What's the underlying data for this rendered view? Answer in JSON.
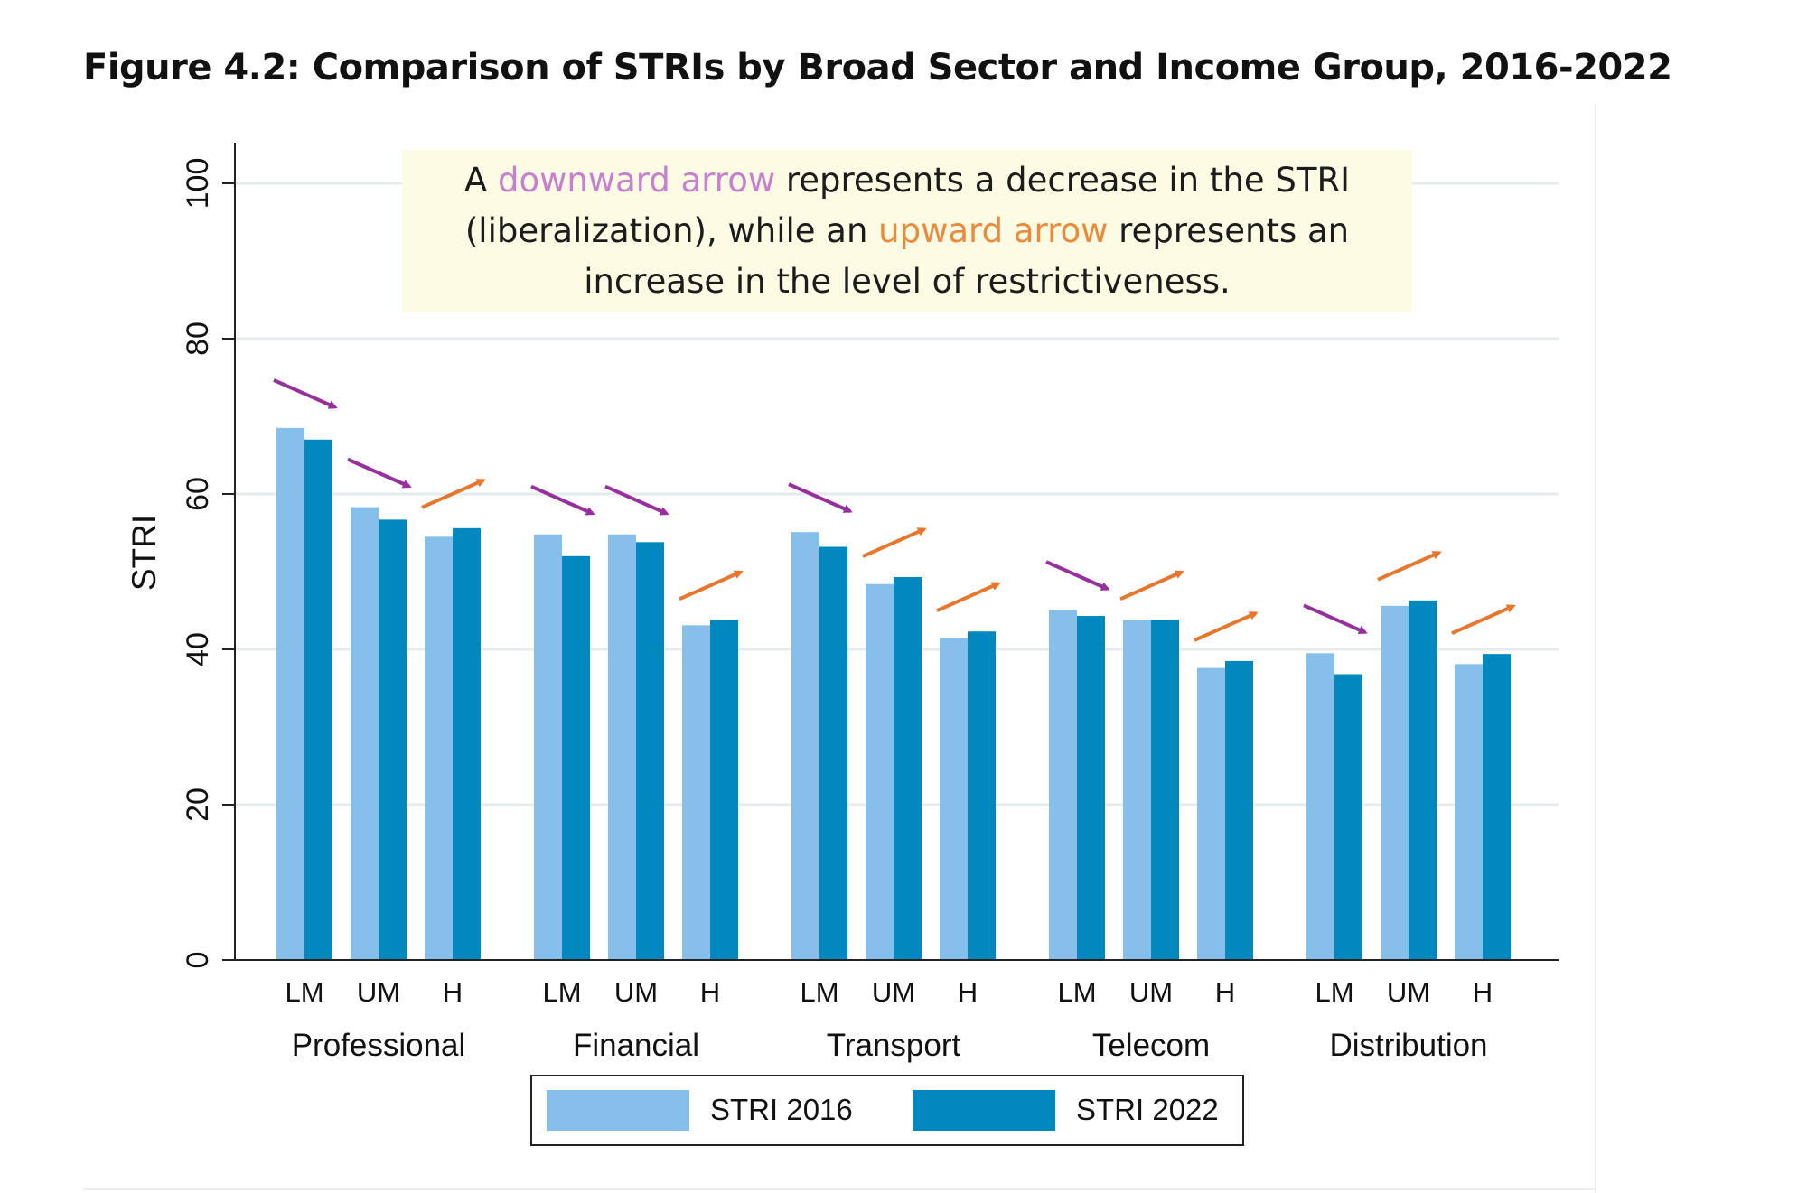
{
  "figure_title": "Figure 4.2: Comparison of STRIs by Broad Sector and Income Group, 2016-2022",
  "note": {
    "part1": "A ",
    "down_phrase": "downward arrow",
    "part2": " represents a decrease in the STRI (liberalization), while an ",
    "up_phrase": "upward arrow",
    "part3": " represents an increase in the level of restrictiveness."
  },
  "colors": {
    "stri_2016": "#85bfea",
    "stri_2022": "#0288bf",
    "arrow_down": "#982f9e",
    "arrow_up": "#e8772e",
    "grid": "#e6ebee",
    "axis": "#222222"
  },
  "chart_data": {
    "type": "bar",
    "title": "Figure 4.2: Comparison of STRIs by Broad Sector and Income Group, 2016-2022",
    "ylabel": "STRI",
    "xlabel": "",
    "ylim": [
      0,
      100
    ],
    "yticks": [
      0,
      20,
      40,
      60,
      80,
      100
    ],
    "grid": true,
    "legend_position": "bottom",
    "sectors": [
      {
        "name": "Professional",
        "groups": [
          "LM",
          "UM",
          "H"
        ],
        "stri_2016": [
          68.5,
          58.3,
          54.5
        ],
        "stri_2022": [
          67.0,
          56.7,
          55.6
        ]
      },
      {
        "name": "Financial",
        "groups": [
          "LM",
          "UM",
          "H"
        ],
        "stri_2016": [
          54.8,
          54.8,
          43.1
        ],
        "stri_2022": [
          52.0,
          53.8,
          43.8
        ]
      },
      {
        "name": "Transport",
        "groups": [
          "LM",
          "UM",
          "H"
        ],
        "stri_2016": [
          55.1,
          48.4,
          41.4
        ],
        "stri_2022": [
          53.2,
          49.3,
          42.3
        ]
      },
      {
        "name": "Telecom",
        "groups": [
          "LM",
          "UM",
          "H"
        ],
        "stri_2016": [
          45.1,
          43.8,
          37.6
        ],
        "stri_2022": [
          44.3,
          43.8,
          38.5
        ]
      },
      {
        "name": "Distribution",
        "groups": [
          "LM",
          "UM",
          "H"
        ],
        "stri_2016": [
          39.5,
          45.6,
          38.1
        ],
        "stri_2022": [
          36.8,
          46.3,
          39.4
        ]
      }
    ],
    "series": [
      {
        "name": "STRI 2016"
      },
      {
        "name": "STRI 2022"
      }
    ],
    "annotations": "Arrows above each group: downward (purple) where STRI 2022 < STRI 2016, upward (orange) where STRI 2022 > STRI 2016"
  }
}
